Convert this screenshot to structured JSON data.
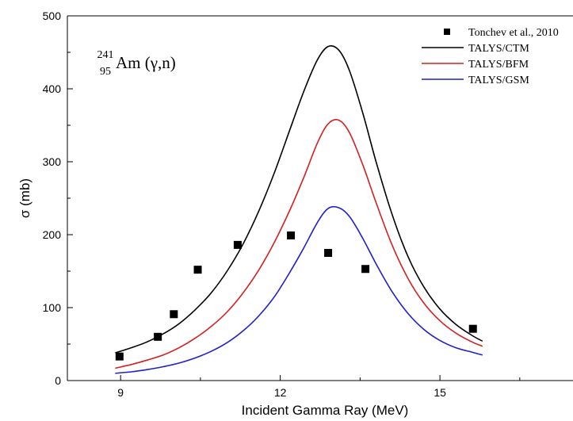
{
  "chart_data": {
    "type": "line",
    "xlabel": "Incident Gamma Ray (MeV)",
    "ylabel": "σ (mb)",
    "xlim": [
      8.0,
      17.5
    ],
    "ylim": [
      0,
      500
    ],
    "x_ticks": [
      9,
      12,
      15
    ],
    "y_ticks": [
      0,
      100,
      200,
      300,
      400,
      500
    ],
    "grid": false,
    "legend_position": "top-right",
    "annotation": {
      "mass_number": "241",
      "atomic_number": "95",
      "text": "Am (γ,n)"
    },
    "scatter_series": {
      "name": "Tonchev et al., 2010",
      "color": "#000000",
      "marker": "square",
      "points": [
        {
          "x": 8.98,
          "y": 33
        },
        {
          "x": 9.7,
          "y": 60
        },
        {
          "x": 10.0,
          "y": 91
        },
        {
          "x": 10.45,
          "y": 152
        },
        {
          "x": 11.2,
          "y": 186
        },
        {
          "x": 12.2,
          "y": 199
        },
        {
          "x": 12.9,
          "y": 175
        },
        {
          "x": 13.6,
          "y": 153
        },
        {
          "x": 15.62,
          "y": 71
        }
      ]
    },
    "series": [
      {
        "name": "TALYS/CTM",
        "color": "#000000",
        "x": [
          8.9,
          9.2,
          9.5,
          9.8,
          10.1,
          10.4,
          10.7,
          11.0,
          11.3,
          11.6,
          11.9,
          12.2,
          12.45,
          12.7,
          12.9,
          13.1,
          13.3,
          13.55,
          13.8,
          14.1,
          14.4,
          14.7,
          15.0,
          15.3,
          15.6,
          15.8
        ],
        "values": [
          38,
          45,
          53,
          64,
          78,
          97,
          120,
          150,
          187,
          233,
          287,
          348,
          398,
          440,
          458,
          453,
          425,
          367,
          300,
          228,
          170,
          128,
          98,
          77,
          62,
          54
        ]
      },
      {
        "name": "TALYS/BFM",
        "color": "#d42020",
        "x": [
          8.9,
          9.2,
          9.5,
          9.8,
          10.1,
          10.4,
          10.7,
          11.0,
          11.3,
          11.6,
          11.9,
          12.2,
          12.45,
          12.7,
          12.9,
          13.1,
          13.3,
          13.55,
          13.8,
          14.1,
          14.4,
          14.7,
          15.0,
          15.3,
          15.6,
          15.8
        ],
        "values": [
          17,
          22,
          28,
          35,
          45,
          58,
          74,
          94,
          120,
          152,
          191,
          237,
          280,
          326,
          352,
          357,
          340,
          296,
          244,
          186,
          140,
          106,
          82,
          65,
          53,
          47
        ]
      },
      {
        "name": "TALYS/GSM",
        "color": "#1f1fcc",
        "x": [
          8.9,
          9.2,
          9.5,
          9.8,
          10.1,
          10.4,
          10.7,
          11.0,
          11.3,
          11.6,
          11.9,
          12.2,
          12.45,
          12.7,
          12.9,
          13.1,
          13.3,
          13.55,
          13.8,
          14.1,
          14.4,
          14.7,
          15.0,
          15.3,
          15.6,
          15.8
        ],
        "values": [
          10,
          12,
          15,
          19,
          24,
          31,
          40,
          52,
          68,
          89,
          116,
          151,
          183,
          217,
          236,
          237,
          225,
          195,
          160,
          122,
          92,
          70,
          55,
          45,
          39,
          35
        ]
      }
    ]
  }
}
